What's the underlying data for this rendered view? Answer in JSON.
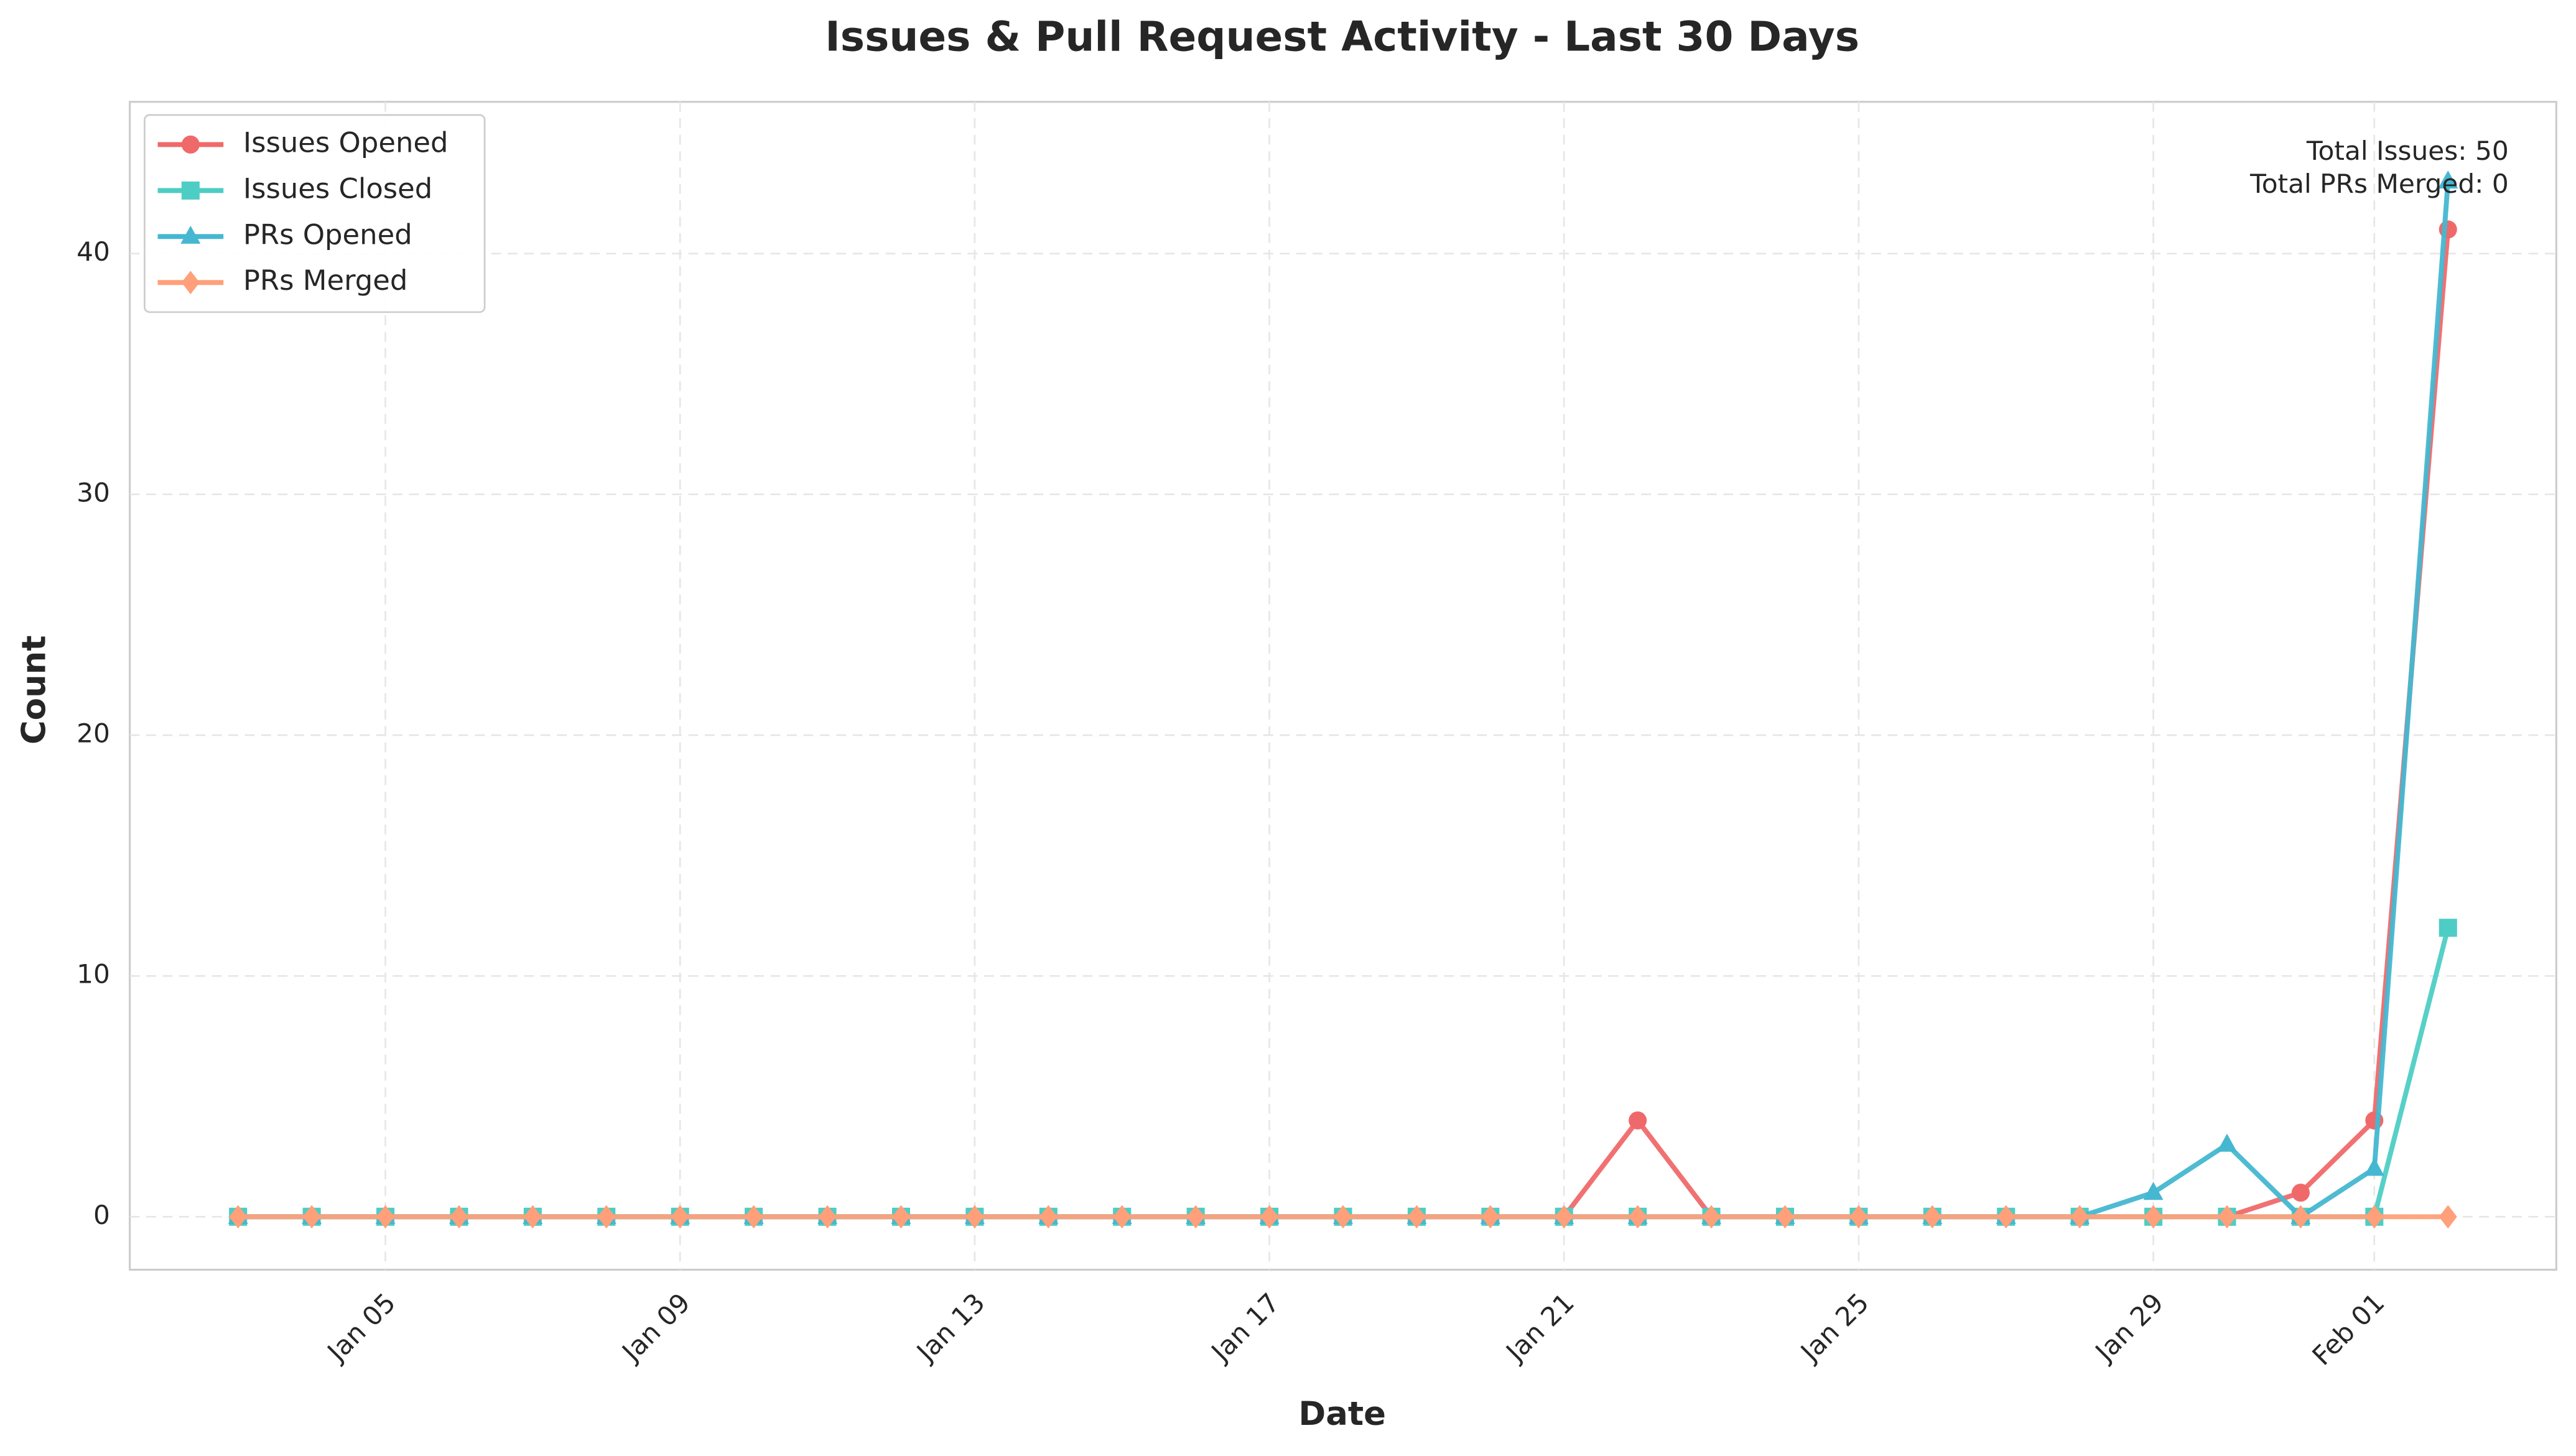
{
  "chart_data": {
    "type": "line",
    "title": "Issues & Pull Request Activity - Last 30 Days",
    "x_label": "Date",
    "y_label": "Count",
    "categories": [
      null,
      null,
      "Jan 05",
      null,
      null,
      null,
      "Jan 09",
      null,
      null,
      null,
      "Jan 13",
      null,
      null,
      null,
      "Jan 17",
      null,
      null,
      null,
      "Jan 21",
      null,
      null,
      null,
      "Jan 25",
      null,
      null,
      null,
      "Jan 29",
      null,
      null,
      "Feb 01",
      null
    ],
    "series": [
      {
        "name": "Issues Opened",
        "color": "#f0696a",
        "marker": "circle",
        "values": [
          0,
          0,
          0,
          0,
          0,
          0,
          0,
          0,
          0,
          0,
          0,
          0,
          0,
          0,
          0,
          0,
          0,
          0,
          0,
          4,
          0,
          0,
          0,
          0,
          0,
          0,
          0,
          0,
          1,
          4,
          41
        ]
      },
      {
        "name": "Issues Closed",
        "color": "#4ecdc4",
        "marker": "square",
        "values": [
          0,
          0,
          0,
          0,
          0,
          0,
          0,
          0,
          0,
          0,
          0,
          0,
          0,
          0,
          0,
          0,
          0,
          0,
          0,
          0,
          0,
          0,
          0,
          0,
          0,
          0,
          0,
          0,
          0,
          0,
          12
        ]
      },
      {
        "name": "PRs Opened",
        "color": "#45b7d1",
        "marker": "triangle",
        "values": [
          0,
          0,
          0,
          0,
          0,
          0,
          0,
          0,
          0,
          0,
          0,
          0,
          0,
          0,
          0,
          0,
          0,
          0,
          0,
          0,
          0,
          0,
          0,
          0,
          0,
          0,
          1,
          3,
          0,
          2,
          43
        ]
      },
      {
        "name": "PRs Merged",
        "color": "#ffa07a",
        "marker": "diamond",
        "values": [
          0,
          0,
          0,
          0,
          0,
          0,
          0,
          0,
          0,
          0,
          0,
          0,
          0,
          0,
          0,
          0,
          0,
          0,
          0,
          0,
          0,
          0,
          0,
          0,
          0,
          0,
          0,
          0,
          0,
          0,
          0
        ]
      }
    ],
    "ylim": [
      -2.2,
      46.3
    ],
    "yticks": [
      0,
      10,
      20,
      30,
      40
    ],
    "grid": true,
    "legend": "upper left",
    "annotations": [
      "Total Issues: 50",
      "Total PRs Merged: 0"
    ]
  }
}
